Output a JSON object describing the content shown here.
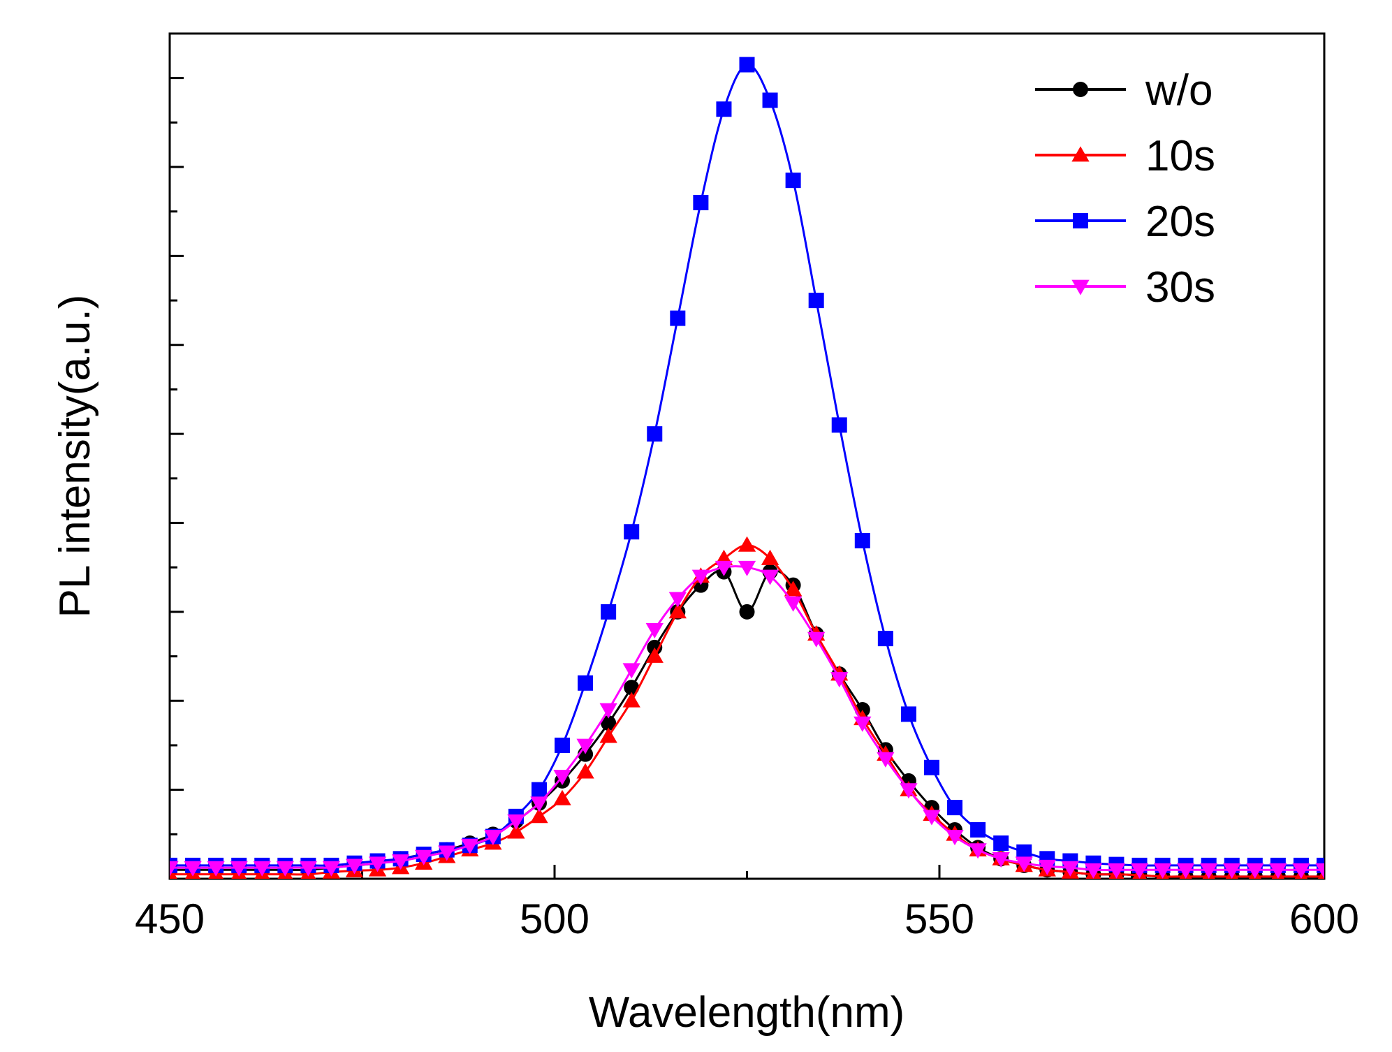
{
  "chart_data": {
    "type": "line",
    "title": "",
    "xlabel": "Wavelength(nm)",
    "ylabel": "PL intensity(a.u.)",
    "xlim": [
      450,
      600
    ],
    "ylim": [
      0,
      19
    ],
    "x_ticks": [
      {
        "value": 450,
        "label": "450"
      },
      {
        "value": 500,
        "label": "500"
      },
      {
        "value": 550,
        "label": "550"
      },
      {
        "value": 600,
        "label": "600"
      }
    ],
    "y_ticks_labeled": false,
    "legend_position": "top-right",
    "x": [
      450,
      453,
      456,
      459,
      462,
      465,
      468,
      471,
      474,
      477,
      480,
      483,
      486,
      489,
      492,
      495,
      498,
      501,
      504,
      507,
      510,
      513,
      516,
      519,
      522,
      525,
      528,
      531,
      534,
      537,
      540,
      543,
      546,
      549,
      552,
      555,
      558,
      561,
      564,
      567,
      570,
      573,
      576,
      579,
      582,
      585,
      588,
      591,
      594,
      597,
      600
    ],
    "series": [
      {
        "name": "w/o",
        "color": "#000000",
        "marker": "circle",
        "values": [
          0.2,
          0.2,
          0.2,
          0.2,
          0.2,
          0.2,
          0.2,
          0.25,
          0.3,
          0.35,
          0.45,
          0.55,
          0.65,
          0.8,
          1.0,
          1.3,
          1.7,
          2.2,
          2.8,
          3.5,
          4.3,
          5.2,
          6.0,
          6.6,
          6.9,
          6.0,
          6.9,
          6.6,
          5.5,
          4.6,
          3.8,
          2.9,
          2.2,
          1.6,
          1.1,
          0.7,
          0.45,
          0.3,
          0.2,
          0.15,
          0.1,
          0.1,
          0.08,
          0.05,
          0.05,
          0.05,
          0.05,
          0.05,
          0.05,
          0.05,
          0.05
        ]
      },
      {
        "name": "10s",
        "color": "#ff0000",
        "marker": "triangle-up",
        "values": [
          0.1,
          0.1,
          0.1,
          0.1,
          0.1,
          0.1,
          0.1,
          0.15,
          0.18,
          0.2,
          0.25,
          0.35,
          0.5,
          0.65,
          0.8,
          1.05,
          1.4,
          1.8,
          2.4,
          3.2,
          4.0,
          5.0,
          6.0,
          6.8,
          7.2,
          7.5,
          7.2,
          6.5,
          5.5,
          4.6,
          3.6,
          2.8,
          2.0,
          1.45,
          1.0,
          0.65,
          0.45,
          0.3,
          0.2,
          0.15,
          0.1,
          0.1,
          0.08,
          0.05,
          0.05,
          0.05,
          0.05,
          0.05,
          0.05,
          0.05,
          0.05
        ]
      },
      {
        "name": "20s",
        "color": "#0000ff",
        "marker": "square",
        "values": [
          0.3,
          0.3,
          0.3,
          0.3,
          0.3,
          0.3,
          0.3,
          0.3,
          0.35,
          0.4,
          0.45,
          0.55,
          0.65,
          0.75,
          0.95,
          1.4,
          2.0,
          3.0,
          4.4,
          6.0,
          7.8,
          10.0,
          12.6,
          15.2,
          17.3,
          18.3,
          17.5,
          15.7,
          13.0,
          10.2,
          7.6,
          5.4,
          3.7,
          2.5,
          1.6,
          1.1,
          0.8,
          0.6,
          0.45,
          0.4,
          0.35,
          0.32,
          0.3,
          0.3,
          0.3,
          0.3,
          0.3,
          0.3,
          0.3,
          0.3,
          0.3
        ]
      },
      {
        "name": "30s",
        "color": "#ff00ff",
        "marker": "triangle-down",
        "values": [
          0.25,
          0.25,
          0.25,
          0.25,
          0.25,
          0.25,
          0.25,
          0.25,
          0.3,
          0.35,
          0.4,
          0.5,
          0.6,
          0.75,
          0.95,
          1.3,
          1.7,
          2.3,
          3.0,
          3.8,
          4.7,
          5.6,
          6.3,
          6.8,
          7.0,
          7.0,
          6.8,
          6.2,
          5.4,
          4.5,
          3.5,
          2.7,
          2.0,
          1.4,
          0.95,
          0.65,
          0.45,
          0.35,
          0.28,
          0.25,
          0.2,
          0.2,
          0.2,
          0.2,
          0.2,
          0.2,
          0.2,
          0.2,
          0.2,
          0.2,
          0.2
        ]
      }
    ]
  }
}
